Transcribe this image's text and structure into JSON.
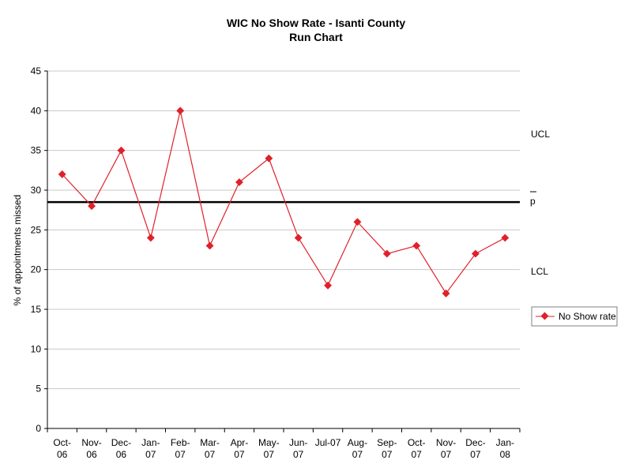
{
  "chart_data": {
    "type": "line",
    "title": "WIC No Show Rate - Isanti County",
    "subtitle": "Run Chart",
    "xlabel": "",
    "ylabel": "% of appointments missed",
    "ylim": [
      0,
      45
    ],
    "ystep": 5,
    "grid": true,
    "legend_position": "right",
    "categories": [
      [
        "Oct-",
        "06"
      ],
      [
        "Nov-",
        "06"
      ],
      [
        "Dec-",
        "06"
      ],
      [
        "Jan-",
        "07"
      ],
      [
        "Feb-",
        "07"
      ],
      [
        "Mar-",
        "07"
      ],
      [
        "Apr-",
        "07"
      ],
      [
        "May-",
        "07"
      ],
      [
        "Jun-",
        "07"
      ],
      [
        "Jul-07",
        ""
      ],
      [
        "Aug-",
        "07"
      ],
      [
        "Sep-",
        "07"
      ],
      [
        "Oct-",
        "07"
      ],
      [
        "Nov-",
        "07"
      ],
      [
        "Dec-",
        "07"
      ],
      [
        "Jan-",
        "08"
      ]
    ],
    "series": [
      {
        "name": "No Show rate",
        "color": "#e0202a",
        "values": [
          32,
          28,
          35,
          24,
          40,
          23,
          31,
          34,
          24,
          18,
          26,
          22,
          23,
          17,
          22,
          24
        ]
      }
    ],
    "center_line": {
      "value": 28.5,
      "label": "p",
      "color": "#000000"
    },
    "control_labels": {
      "ucl": "UCL",
      "lcl": "LCL"
    }
  }
}
